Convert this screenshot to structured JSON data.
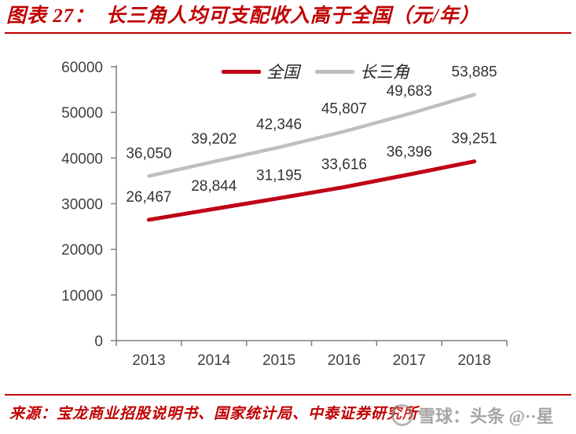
{
  "header": {
    "title": "图表 27：  长三角人均可支配收入高于全国（元/年）",
    "accent_color": "#C00000"
  },
  "chart_data": {
    "type": "line",
    "title": "",
    "categories": [
      "2013",
      "2014",
      "2015",
      "2016",
      "2017",
      "2018"
    ],
    "series": [
      {
        "name": "全国",
        "color": "#C00014",
        "values": [
          26467,
          28844,
          31195,
          33616,
          36396,
          39251
        ],
        "labels": [
          "26,467",
          "28,844",
          "31,195",
          "33,616",
          "36,396",
          "39,251"
        ]
      },
      {
        "name": "长三角",
        "color": "#BFBFBF",
        "values": [
          36050,
          39202,
          42346,
          45807,
          49683,
          53885
        ],
        "labels": [
          "36,050",
          "39,202",
          "42,346",
          "45,807",
          "49,683",
          "53,885"
        ]
      }
    ],
    "ylim": [
      0,
      60000
    ],
    "ytick_step": 10000,
    "yticks": [
      "0",
      "10000",
      "20000",
      "30000",
      "40000",
      "50000",
      "60000"
    ],
    "xlabel": "",
    "ylabel": "",
    "grid": false,
    "legend_position": "top-center",
    "axis_color": "#7F7F7F",
    "tick_label_color": "#404040",
    "data_label_color": "#333333"
  },
  "footer": {
    "source_label": "来源：宝龙商业招股说明书、国家统计局、中泰证券研究所"
  },
  "watermark": {
    "text": "雪球：头条 @··星",
    "logo": "circle-logo"
  }
}
